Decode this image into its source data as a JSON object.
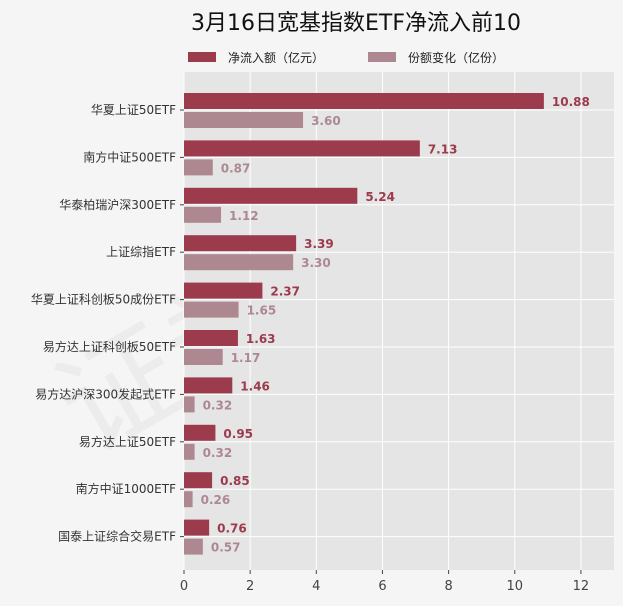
{
  "chart_data": {
    "type": "bar",
    "orientation": "horizontal",
    "title": "3月16日宽基指数ETF净流入前10",
    "categories": [
      "华夏上证50ETF",
      "南方中证500ETF",
      "华泰柏瑞沪深300ETF",
      "上证综指ETF",
      "华夏上证科创板50成份ETF",
      "易方达上证科创板50ETF",
      "易方达沪深300发起式ETF",
      "易方达上证50ETF",
      "南方中证1000ETF",
      "国泰上证综合交易ETF"
    ],
    "series": [
      {
        "name": "净流入额（亿元）",
        "color": "#9b3b4c",
        "values": [
          10.88,
          7.13,
          5.24,
          3.39,
          2.37,
          1.63,
          1.46,
          0.95,
          0.85,
          0.76
        ],
        "labels": [
          "10.88",
          "7.13",
          "5.24",
          "3.39",
          "2.37",
          "1.63",
          "1.46",
          "0.95",
          "0.85",
          "0.76"
        ]
      },
      {
        "name": "份额变化（亿份）",
        "color": "#ad8891",
        "values": [
          3.6,
          0.87,
          1.12,
          3.3,
          1.65,
          1.17,
          0.32,
          0.32,
          0.26,
          0.57
        ],
        "labels": [
          "3.60",
          "0.87",
          "1.12",
          "3.30",
          "1.65",
          "1.17",
          "0.32",
          "0.32",
          "0.26",
          "0.57"
        ]
      }
    ],
    "xlim": [
      0,
      13
    ],
    "xticks": [
      "0",
      "2",
      "4",
      "6",
      "8",
      "10",
      "12"
    ],
    "xtick_values": [
      0,
      2,
      4,
      6,
      8,
      10,
      12
    ],
    "grid": true,
    "legend": "top-center",
    "watermark": "证券之星"
  }
}
